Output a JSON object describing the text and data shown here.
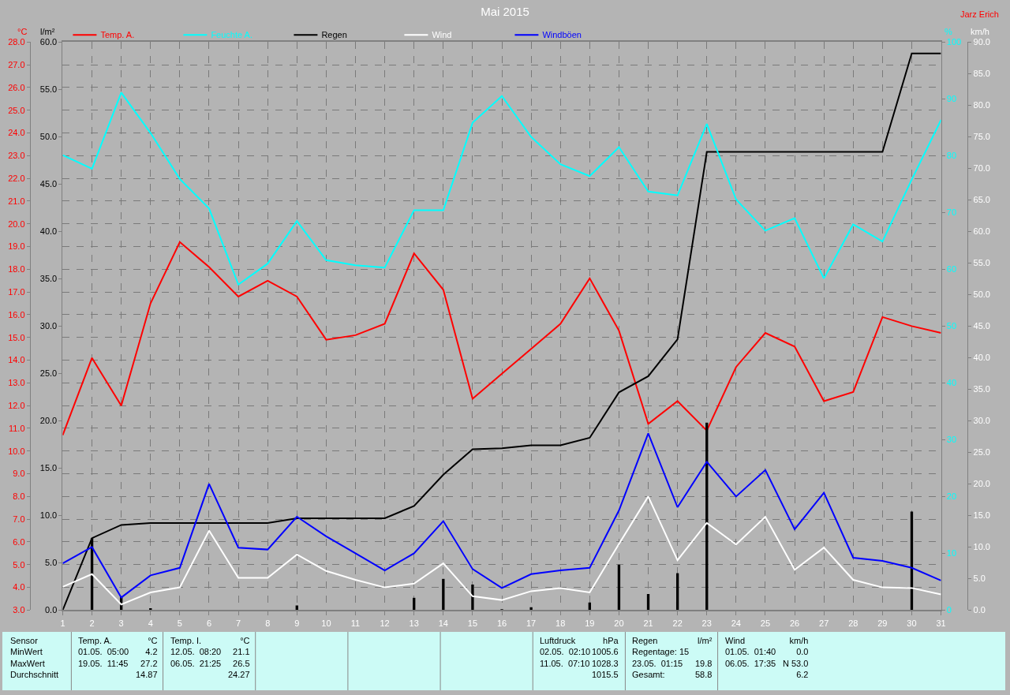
{
  "chart_data": [
    {
      "type": "line",
      "title": "Mai 2015",
      "ylabel": "°C",
      "y2label": "l/m²",
      "y3label": "km/h",
      "x": [
        1,
        2,
        3,
        4,
        5,
        6,
        7,
        8,
        9,
        10,
        11,
        12,
        13,
        14,
        15,
        16,
        17,
        18,
        19,
        20,
        21,
        22,
        23,
        24,
        25,
        26,
        27,
        28,
        29,
        30,
        31
      ],
      "xlim": [
        1,
        31
      ],
      "xticks": [
        1,
        2,
        3,
        4,
        5,
        6,
        7,
        8,
        9,
        10,
        11,
        12,
        13,
        14,
        15,
        16,
        17,
        18,
        19,
        20,
        21,
        22,
        23,
        24,
        25,
        26,
        27,
        28,
        29,
        30,
        31
      ],
      "ylim": [
        3,
        28
      ],
      "yticks": [
        {
          "value": 3,
          "label": "3.0"
        },
        {
          "value": 4,
          "label": "4.0"
        },
        {
          "value": 5,
          "label": "5.0"
        },
        {
          "value": 6,
          "label": "6.0"
        },
        {
          "value": 7,
          "label": "7.0"
        },
        {
          "value": 8,
          "label": "8.0"
        },
        {
          "value": 9,
          "label": "9.0"
        },
        {
          "value": 10,
          "label": "10.0"
        },
        {
          "value": 11,
          "label": "11.0"
        },
        {
          "value": 12,
          "label": "12.0"
        },
        {
          "value": 13,
          "label": "13.0"
        },
        {
          "value": 14,
          "label": "14.0"
        },
        {
          "value": 15,
          "label": "15.0"
        },
        {
          "value": 16,
          "label": "16.0"
        },
        {
          "value": 17,
          "label": "17.0"
        },
        {
          "value": 18,
          "label": "18.0"
        },
        {
          "value": 19,
          "label": "19.0"
        },
        {
          "value": 20,
          "label": "20.0"
        },
        {
          "value": 21,
          "label": "21.0"
        },
        {
          "value": 22,
          "label": "22.0"
        },
        {
          "value": 23,
          "label": "23.0"
        },
        {
          "value": 24,
          "label": "24.0"
        },
        {
          "value": 25,
          "label": "25.0"
        },
        {
          "value": 26,
          "label": "26.0"
        },
        {
          "value": 27,
          "label": "27.0"
        },
        {
          "value": 28,
          "label": "28.0"
        }
      ],
      "y2lim": [
        0,
        60
      ],
      "y2ticks": [
        {
          "value": 0,
          "label": "0.0"
        },
        {
          "value": 5,
          "label": "5.0"
        },
        {
          "value": 10,
          "label": "10.0"
        },
        {
          "value": 15,
          "label": "15.0"
        },
        {
          "value": 20,
          "label": "20.0"
        },
        {
          "value": 25,
          "label": "25.0"
        },
        {
          "value": 30,
          "label": "30.0"
        },
        {
          "value": 35,
          "label": "35.0"
        },
        {
          "value": 40,
          "label": "40.0"
        },
        {
          "value": 45,
          "label": "45.0"
        },
        {
          "value": 50,
          "label": "50.0"
        },
        {
          "value": 55,
          "label": "55.0"
        },
        {
          "value": 60,
          "label": "60.0"
        }
      ],
      "y3lim": [
        0,
        90
      ],
      "y3ticks": [
        {
          "value": 0,
          "label": "0.0"
        },
        {
          "value": 5,
          "label": "5.0"
        },
        {
          "value": 10,
          "label": "10.0"
        },
        {
          "value": 15,
          "label": "15.0"
        },
        {
          "value": 20,
          "label": "20.0"
        },
        {
          "value": 25,
          "label": "25.0"
        },
        {
          "value": 30,
          "label": "30.0"
        },
        {
          "value": 35,
          "label": "35.0"
        },
        {
          "value": 40,
          "label": "40.0"
        },
        {
          "value": 45,
          "label": "45.0"
        },
        {
          "value": 50,
          "label": "50.0"
        },
        {
          "value": 55,
          "label": "55.0"
        },
        {
          "value": 60,
          "label": "60.0"
        },
        {
          "value": 65,
          "label": "65.0"
        },
        {
          "value": 70,
          "label": "70.0"
        },
        {
          "value": 75,
          "label": "75.0"
        },
        {
          "value": 80,
          "label": "80.0"
        },
        {
          "value": 85,
          "label": "85.0"
        },
        {
          "value": 90,
          "label": "90.0"
        }
      ],
      "grid": true,
      "legend": "top left",
      "series": [
        {
          "name": "Temp. A.",
          "color": "#ff0000",
          "values": [
            10.7,
            14.1,
            12.0,
            16.5,
            19.2,
            18.1,
            16.8,
            17.5,
            16.8,
            14.9,
            15.1,
            15.6,
            18.7,
            17.1,
            12.3,
            13.4,
            14.5,
            15.6,
            17.6,
            15.3,
            11.2,
            12.2,
            10.9,
            13.7,
            15.2,
            14.6,
            12.2,
            12.6,
            15.9,
            15.5,
            15.2
          ]
        },
        {
          "type": "bar",
          "color": "#000000",
          "axis": "y2",
          "values": [
            0,
            7.6,
            1.4,
            0.2,
            0,
            0,
            0,
            0,
            0.5,
            0,
            0,
            0,
            1.3,
            3.3,
            2.7,
            0.1,
            0.3,
            0,
            0.8,
            4.8,
            1.7,
            3.9,
            19.8,
            0,
            0,
            0,
            0,
            0,
            0,
            10.4,
            0
          ]
        },
        {
          "name": "Regen",
          "color": "#000000",
          "axis": "y2",
          "values": [
            0,
            7.6,
            9.0,
            9.2,
            9.2,
            9.2,
            9.2,
            9.2,
            9.7,
            9.7,
            9.7,
            9.7,
            11.0,
            14.3,
            17.0,
            17.1,
            17.4,
            17.4,
            18.2,
            23.0,
            24.7,
            28.6,
            48.4,
            48.4,
            48.4,
            48.4,
            48.4,
            48.4,
            48.4,
            58.8,
            58.8
          ]
        },
        {
          "name": "Wind",
          "color": "#ffffff",
          "axis": "y3",
          "values": [
            3.7,
            5.7,
            0.9,
            2.8,
            3.6,
            12.6,
            5.1,
            5.1,
            8.8,
            6.2,
            4.8,
            3.6,
            4.2,
            7.4,
            2.2,
            1.6,
            3.0,
            3.5,
            2.8,
            10.5,
            18.0,
            7.9,
            13.8,
            10.4,
            14.8,
            6.4,
            9.9,
            4.8,
            3.6,
            3.5,
            2.5
          ]
        },
        {
          "name": "Windböen",
          "color": "#0000ff",
          "axis": "y3",
          "values": [
            7.4,
            10.0,
            2.0,
            5.5,
            6.7,
            20.0,
            9.9,
            9.6,
            14.8,
            11.7,
            9.0,
            6.3,
            9.0,
            14.1,
            6.5,
            3.5,
            5.7,
            6.3,
            6.7,
            15.8,
            28.0,
            16.3,
            23.5,
            18.0,
            22.2,
            12.8,
            18.6,
            8.3,
            7.8,
            6.7,
            4.7
          ]
        }
      ],
      "annotations": [
        "Jarz Erich",
        "Sensor\nMinWert\nMaxWert\nDurchschnitt",
        "Temp. A.\n01.05.  05:00\n19.05.  11:45\n ",
        "°C\n4.2\n27.2\n14.87",
        "Temp. I.\n12.05.  08:20\n06.05.  21:25\n ",
        "°C\n21.1\n26.5\n24.27",
        "Luftdruck\n02.05.  02:10\n11.05.  07:10\n ",
        "hPa\n1005.6\n1028.3\n1015.5",
        "Regen\nRegentage: 15\n23.05.  01:15\nGesamt:",
        "l/m²\n \n19.8\n58.8",
        "Wind\n01.05.  01:40\n06.05.  17:35\n ",
        "km/h\n0.0\nN 53.0\n6.2"
      ]
    },
    {
      "type": "line",
      "ylabel": "%",
      "tick_labels": "y",
      "legend": "top left",
      "x": [
        1,
        2,
        3,
        4,
        5,
        6,
        7,
        8,
        9,
        10,
        11,
        12,
        13,
        14,
        15,
        16,
        17,
        18,
        19,
        20,
        21,
        22,
        23,
        24,
        25,
        26,
        27,
        28,
        29,
        30,
        31
      ],
      "xlim": [
        1,
        31
      ],
      "ylim": [
        0,
        100
      ],
      "yticks": [
        0,
        10,
        20,
        30,
        40,
        50,
        60,
        70,
        80,
        90,
        100
      ],
      "series": [
        {
          "name": "Feuchte A.",
          "color": "#00ffff",
          "values": [
            80.1,
            77.7,
            91.1,
            84.0,
            75.9,
            70.7,
            57.3,
            61.0,
            68.5,
            61.6,
            60.7,
            60.3,
            70.4,
            70.4,
            85.8,
            90.5,
            83.3,
            78.5,
            76.4,
            81.5,
            73.7,
            73.0,
            85.6,
            72.3,
            66.8,
            69.0,
            58.4,
            67.9,
            64.9,
            75.8,
            86.3
          ]
        }
      ]
    }
  ]
}
